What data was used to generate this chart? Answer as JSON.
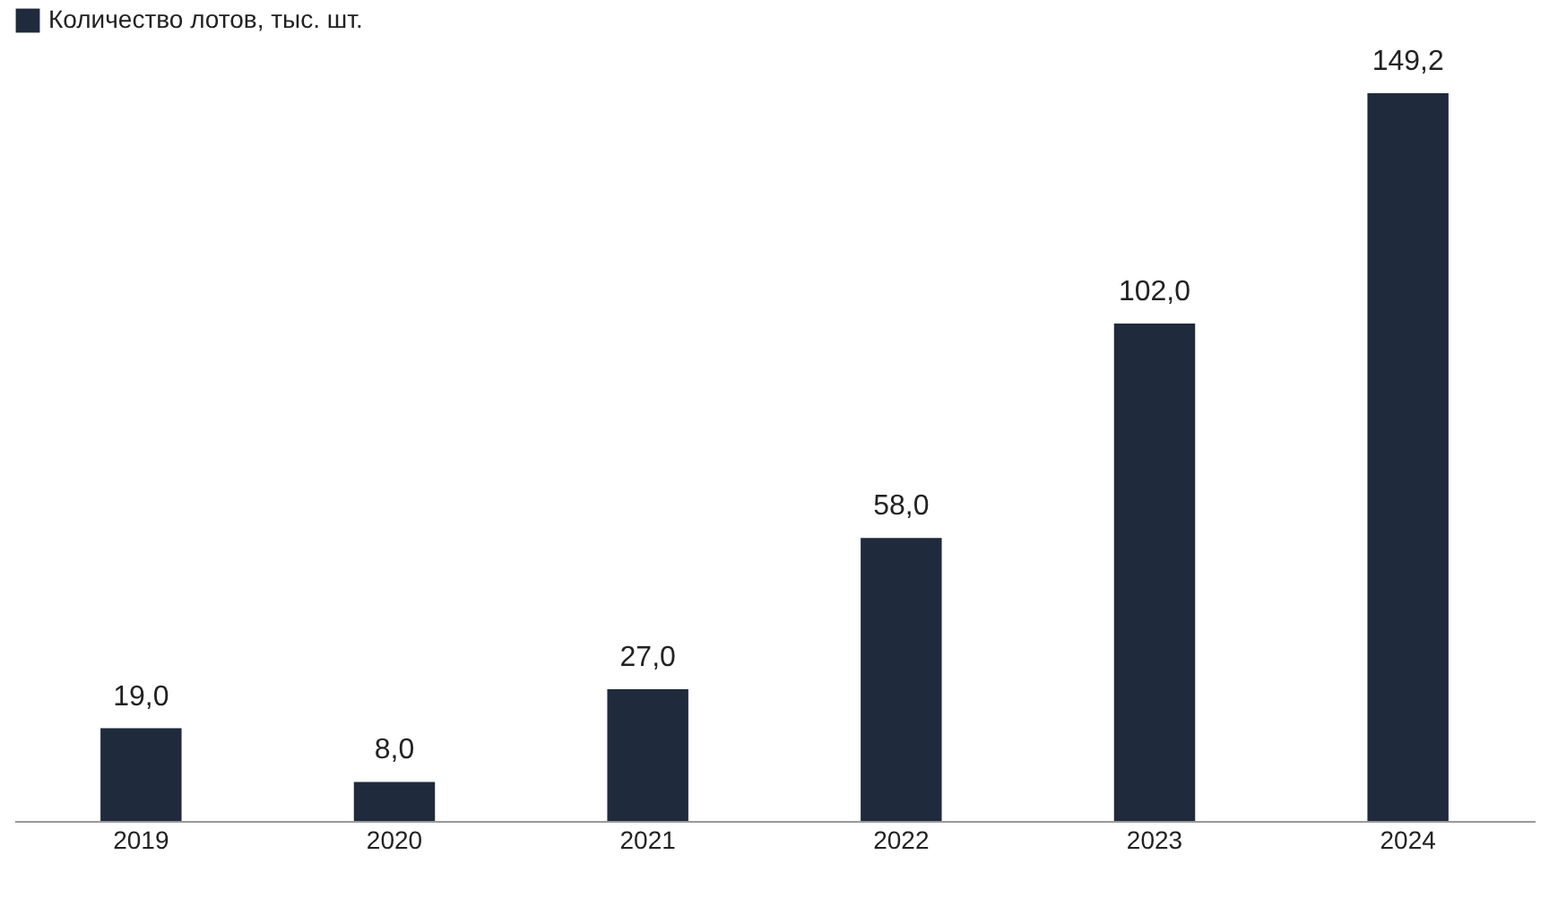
{
  "chart_data": {
    "type": "bar",
    "categories": [
      "2019",
      "2020",
      "2021",
      "2022",
      "2023",
      "2024"
    ],
    "series": [
      {
        "name": "Количество лотов, тыс. шт.",
        "color": "#1f2a3c",
        "values": [
          19.0,
          8.0,
          27.0,
          58.0,
          102.0,
          149.2
        ],
        "value_labels": [
          "19,0",
          "8,0",
          "27,0",
          "58,0",
          "102,0",
          "149,2"
        ]
      }
    ],
    "legend": "top left",
    "grid": false
  }
}
